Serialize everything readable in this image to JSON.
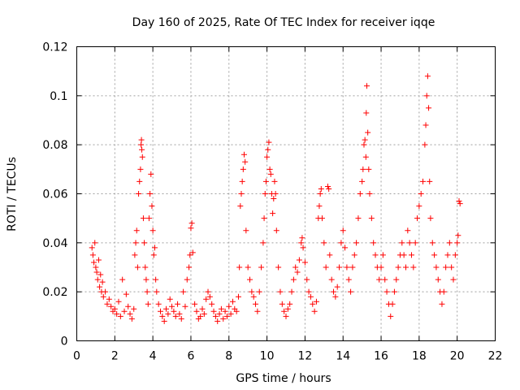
{
  "chart_data": {
    "type": "scatter",
    "title": "Day 160 of 2025, Rate Of TEC Index for receiver iqqe",
    "xlabel": "GPS time / hours",
    "ylabel": "ROTI / TECUs",
    "xlim": [
      0,
      22
    ],
    "ylim": [
      0,
      0.12
    ],
    "xticks": [
      0,
      2,
      4,
      6,
      8,
      10,
      12,
      14,
      16,
      18,
      20,
      22
    ],
    "yticks": [
      0,
      0.02,
      0.04,
      0.06,
      0.08,
      0.1,
      0.12
    ],
    "xtick_labels": [
      "0",
      "2",
      "4",
      "6",
      "8",
      "10",
      "12",
      "14",
      "16",
      "18",
      "20",
      "22"
    ],
    "ytick_labels": [
      "0",
      "0.02",
      "0.04",
      "0.06",
      "0.08",
      "0.1",
      "0.12"
    ],
    "grid": true,
    "marker": "+",
    "color": "#ff0000",
    "series": [
      {
        "name": "ROTI",
        "points": [
          [
            0.8,
            0.038
          ],
          [
            0.85,
            0.035
          ],
          [
            0.9,
            0.032
          ],
          [
            0.95,
            0.04
          ],
          [
            1.0,
            0.03
          ],
          [
            1.05,
            0.028
          ],
          [
            1.1,
            0.025
          ],
          [
            1.15,
            0.033
          ],
          [
            1.2,
            0.022
          ],
          [
            1.25,
            0.027
          ],
          [
            1.3,
            0.02
          ],
          [
            1.35,
            0.024
          ],
          [
            1.4,
            0.018
          ],
          [
            1.5,
            0.02
          ],
          [
            1.6,
            0.015
          ],
          [
            1.7,
            0.017
          ],
          [
            1.8,
            0.014
          ],
          [
            1.9,
            0.012
          ],
          [
            2.0,
            0.013
          ],
          [
            2.1,
            0.011
          ],
          [
            2.2,
            0.016
          ],
          [
            2.3,
            0.01
          ],
          [
            2.4,
            0.025
          ],
          [
            2.5,
            0.012
          ],
          [
            2.6,
            0.019
          ],
          [
            2.7,
            0.014
          ],
          [
            2.8,
            0.011
          ],
          [
            2.9,
            0.009
          ],
          [
            3.0,
            0.013
          ],
          [
            3.05,
            0.035
          ],
          [
            3.1,
            0.04
          ],
          [
            3.15,
            0.045
          ],
          [
            3.2,
            0.03
          ],
          [
            3.25,
            0.06
          ],
          [
            3.3,
            0.065
          ],
          [
            3.35,
            0.07
          ],
          [
            3.38,
            0.08
          ],
          [
            3.4,
            0.082
          ],
          [
            3.42,
            0.078
          ],
          [
            3.45,
            0.075
          ],
          [
            3.5,
            0.05
          ],
          [
            3.55,
            0.04
          ],
          [
            3.6,
            0.03
          ],
          [
            3.65,
            0.025
          ],
          [
            3.7,
            0.02
          ],
          [
            3.75,
            0.015
          ],
          [
            3.8,
            0.05
          ],
          [
            3.85,
            0.06
          ],
          [
            3.9,
            0.068
          ],
          [
            3.95,
            0.055
          ],
          [
            4.0,
            0.045
          ],
          [
            4.05,
            0.035
          ],
          [
            4.1,
            0.038
          ],
          [
            4.15,
            0.025
          ],
          [
            4.2,
            0.02
          ],
          [
            4.3,
            0.015
          ],
          [
            4.4,
            0.012
          ],
          [
            4.5,
            0.01
          ],
          [
            4.6,
            0.008
          ],
          [
            4.7,
            0.013
          ],
          [
            4.8,
            0.011
          ],
          [
            4.9,
            0.017
          ],
          [
            5.0,
            0.014
          ],
          [
            5.1,
            0.012
          ],
          [
            5.2,
            0.01
          ],
          [
            5.3,
            0.015
          ],
          [
            5.4,
            0.011
          ],
          [
            5.5,
            0.009
          ],
          [
            5.6,
            0.02
          ],
          [
            5.7,
            0.014
          ],
          [
            5.8,
            0.025
          ],
          [
            5.9,
            0.03
          ],
          [
            5.95,
            0.035
          ],
          [
            6.0,
            0.046
          ],
          [
            6.05,
            0.048
          ],
          [
            6.1,
            0.036
          ],
          [
            6.2,
            0.015
          ],
          [
            6.3,
            0.012
          ],
          [
            6.4,
            0.009
          ],
          [
            6.5,
            0.01
          ],
          [
            6.6,
            0.013
          ],
          [
            6.7,
            0.011
          ],
          [
            6.8,
            0.017
          ],
          [
            6.9,
            0.02
          ],
          [
            7.0,
            0.018
          ],
          [
            7.1,
            0.015
          ],
          [
            7.2,
            0.012
          ],
          [
            7.3,
            0.01
          ],
          [
            7.4,
            0.008
          ],
          [
            7.5,
            0.011
          ],
          [
            7.6,
            0.013
          ],
          [
            7.7,
            0.009
          ],
          [
            7.8,
            0.012
          ],
          [
            7.9,
            0.01
          ],
          [
            8.0,
            0.014
          ],
          [
            8.1,
            0.011
          ],
          [
            8.2,
            0.016
          ],
          [
            8.3,
            0.013
          ],
          [
            8.4,
            0.012
          ],
          [
            8.5,
            0.018
          ],
          [
            8.55,
            0.03
          ],
          [
            8.6,
            0.055
          ],
          [
            8.65,
            0.06
          ],
          [
            8.7,
            0.065
          ],
          [
            8.75,
            0.07
          ],
          [
            8.8,
            0.076
          ],
          [
            8.85,
            0.073
          ],
          [
            8.9,
            0.045
          ],
          [
            9.0,
            0.03
          ],
          [
            9.1,
            0.025
          ],
          [
            9.2,
            0.02
          ],
          [
            9.3,
            0.018
          ],
          [
            9.4,
            0.015
          ],
          [
            9.5,
            0.012
          ],
          [
            9.6,
            0.02
          ],
          [
            9.7,
            0.03
          ],
          [
            9.8,
            0.04
          ],
          [
            9.85,
            0.05
          ],
          [
            9.9,
            0.06
          ],
          [
            9.95,
            0.065
          ],
          [
            10.0,
            0.075
          ],
          [
            10.05,
            0.078
          ],
          [
            10.1,
            0.081
          ],
          [
            10.15,
            0.07
          ],
          [
            10.2,
            0.068
          ],
          [
            10.25,
            0.06
          ],
          [
            10.3,
            0.052
          ],
          [
            10.35,
            0.058
          ],
          [
            10.4,
            0.065
          ],
          [
            10.45,
            0.06
          ],
          [
            10.5,
            0.045
          ],
          [
            10.6,
            0.03
          ],
          [
            10.7,
            0.02
          ],
          [
            10.8,
            0.015
          ],
          [
            10.9,
            0.012
          ],
          [
            11.0,
            0.01
          ],
          [
            11.1,
            0.013
          ],
          [
            11.2,
            0.015
          ],
          [
            11.3,
            0.02
          ],
          [
            11.4,
            0.025
          ],
          [
            11.5,
            0.03
          ],
          [
            11.6,
            0.028
          ],
          [
            11.7,
            0.033
          ],
          [
            11.8,
            0.04
          ],
          [
            11.85,
            0.042
          ],
          [
            11.9,
            0.038
          ],
          [
            12.0,
            0.032
          ],
          [
            12.1,
            0.025
          ],
          [
            12.2,
            0.02
          ],
          [
            12.3,
            0.018
          ],
          [
            12.4,
            0.015
          ],
          [
            12.5,
            0.012
          ],
          [
            12.6,
            0.016
          ],
          [
            12.7,
            0.05
          ],
          [
            12.75,
            0.055
          ],
          [
            12.8,
            0.06
          ],
          [
            12.85,
            0.062
          ],
          [
            12.9,
            0.05
          ],
          [
            13.0,
            0.04
          ],
          [
            13.1,
            0.03
          ],
          [
            13.2,
            0.063
          ],
          [
            13.25,
            0.062
          ],
          [
            13.3,
            0.035
          ],
          [
            13.4,
            0.025
          ],
          [
            13.5,
            0.02
          ],
          [
            13.6,
            0.018
          ],
          [
            13.7,
            0.022
          ],
          [
            13.8,
            0.03
          ],
          [
            13.9,
            0.04
          ],
          [
            14.0,
            0.045
          ],
          [
            14.1,
            0.038
          ],
          [
            14.2,
            0.03
          ],
          [
            14.3,
            0.025
          ],
          [
            14.4,
            0.02
          ],
          [
            14.5,
            0.03
          ],
          [
            14.6,
            0.035
          ],
          [
            14.7,
            0.04
          ],
          [
            14.8,
            0.05
          ],
          [
            14.9,
            0.06
          ],
          [
            15.0,
            0.065
          ],
          [
            15.05,
            0.07
          ],
          [
            15.1,
            0.08
          ],
          [
            15.15,
            0.082
          ],
          [
            15.2,
            0.075
          ],
          [
            15.22,
            0.093
          ],
          [
            15.25,
            0.104
          ],
          [
            15.3,
            0.085
          ],
          [
            15.35,
            0.07
          ],
          [
            15.4,
            0.06
          ],
          [
            15.5,
            0.05
          ],
          [
            15.6,
            0.04
          ],
          [
            15.7,
            0.035
          ],
          [
            15.8,
            0.03
          ],
          [
            15.9,
            0.025
          ],
          [
            16.0,
            0.03
          ],
          [
            16.1,
            0.035
          ],
          [
            16.2,
            0.025
          ],
          [
            16.3,
            0.02
          ],
          [
            16.4,
            0.015
          ],
          [
            16.5,
            0.01
          ],
          [
            16.6,
            0.015
          ],
          [
            16.7,
            0.02
          ],
          [
            16.8,
            0.025
          ],
          [
            16.9,
            0.03
          ],
          [
            17.0,
            0.035
          ],
          [
            17.1,
            0.04
          ],
          [
            17.2,
            0.035
          ],
          [
            17.3,
            0.03
          ],
          [
            17.4,
            0.045
          ],
          [
            17.5,
            0.04
          ],
          [
            17.6,
            0.035
          ],
          [
            17.7,
            0.03
          ],
          [
            17.8,
            0.04
          ],
          [
            17.9,
            0.05
          ],
          [
            18.0,
            0.055
          ],
          [
            18.1,
            0.06
          ],
          [
            18.2,
            0.065
          ],
          [
            18.3,
            0.08
          ],
          [
            18.35,
            0.088
          ],
          [
            18.4,
            0.1
          ],
          [
            18.45,
            0.108
          ],
          [
            18.5,
            0.095
          ],
          [
            18.55,
            0.065
          ],
          [
            18.6,
            0.05
          ],
          [
            18.7,
            0.04
          ],
          [
            18.8,
            0.035
          ],
          [
            18.9,
            0.03
          ],
          [
            19.0,
            0.025
          ],
          [
            19.1,
            0.02
          ],
          [
            19.2,
            0.015
          ],
          [
            19.3,
            0.02
          ],
          [
            19.4,
            0.03
          ],
          [
            19.5,
            0.035
          ],
          [
            19.6,
            0.04
          ],
          [
            19.7,
            0.03
          ],
          [
            19.8,
            0.025
          ],
          [
            19.9,
            0.035
          ],
          [
            20.0,
            0.04
          ],
          [
            20.05,
            0.043
          ],
          [
            20.1,
            0.057
          ],
          [
            20.15,
            0.056
          ]
        ]
      }
    ]
  }
}
